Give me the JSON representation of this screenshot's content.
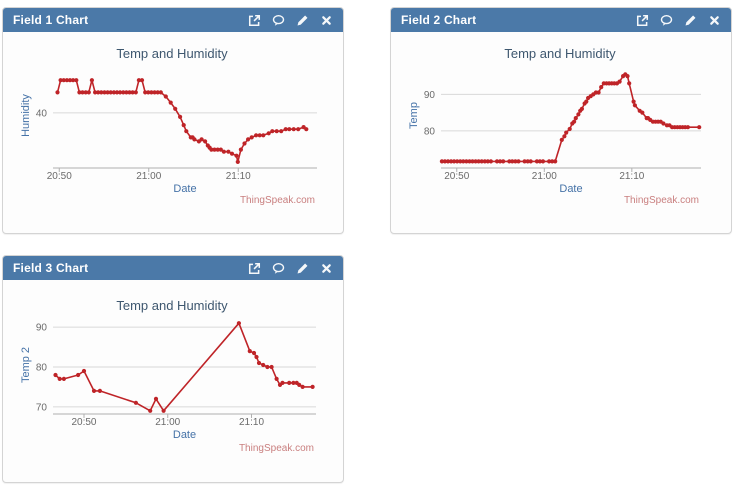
{
  "panels": [
    {
      "title": "Field 1 Chart",
      "icons": [
        "popout-icon",
        "comment-icon",
        "edit-icon",
        "close-icon"
      ]
    },
    {
      "title": "Field 2 Chart",
      "icons": [
        "popout-icon",
        "comment-icon",
        "edit-icon",
        "close-icon"
      ]
    },
    {
      "title": "Field 3 Chart",
      "icons": [
        "popout-icon",
        "comment-icon",
        "edit-icon",
        "close-icon"
      ]
    }
  ],
  "colors": {
    "header_bg": "#4b79a8",
    "header_text": "#ffffff",
    "series_red": "#bf2428",
    "grid": "#d8d8d8",
    "axis_line": "#b0b0b0",
    "chart_title": "#3e576f",
    "axis_title_blue": "#4572a7",
    "tick_label": "#6b6b6b",
    "watermark": "#c97f7f"
  },
  "chart_data": [
    {
      "type": "line",
      "title": "Temp and Humidity",
      "xlabel": "Date",
      "ylabel": "Humidity",
      "watermark": "ThingSpeak.com",
      "x_unit": "minutes since 20:00",
      "xlim": [
        49.3,
        78.8
      ],
      "ylim": [
        26.5,
        52.2
      ],
      "xticks": [
        {
          "v": 50,
          "label": "20:50"
        },
        {
          "v": 60,
          "label": "21:00"
        },
        {
          "v": 70,
          "label": "21:10"
        }
      ],
      "yticks": [
        40
      ],
      "points": [
        [
          49.8,
          45
        ],
        [
          50.15,
          48
        ],
        [
          50.5,
          48
        ],
        [
          50.85,
          48
        ],
        [
          51.2,
          48
        ],
        [
          51.55,
          48
        ],
        [
          51.9,
          48
        ],
        [
          52.25,
          45
        ],
        [
          52.6,
          45
        ],
        [
          52.95,
          45
        ],
        [
          53.3,
          45
        ],
        [
          53.65,
          48
        ],
        [
          54.0,
          45
        ],
        [
          54.35,
          45
        ],
        [
          54.7,
          45
        ],
        [
          55.05,
          45
        ],
        [
          55.4,
          45
        ],
        [
          55.75,
          45
        ],
        [
          56.1,
          45
        ],
        [
          56.45,
          45
        ],
        [
          56.8,
          45
        ],
        [
          57.15,
          45
        ],
        [
          57.5,
          45
        ],
        [
          57.85,
          45
        ],
        [
          58.2,
          45
        ],
        [
          58.55,
          45
        ],
        [
          58.9,
          48
        ],
        [
          59.25,
          48
        ],
        [
          59.6,
          45
        ],
        [
          59.95,
          45
        ],
        [
          60.3,
          45
        ],
        [
          60.65,
          45
        ],
        [
          61.0,
          45
        ],
        [
          61.35,
          45
        ],
        [
          61.9,
          44
        ],
        [
          62.45,
          42.5
        ],
        [
          62.95,
          41
        ],
        [
          63.5,
          39
        ],
        [
          63.9,
          37
        ],
        [
          64.2,
          35.5
        ],
        [
          64.7,
          34
        ],
        [
          64.9,
          34
        ],
        [
          65.1,
          33.5
        ],
        [
          65.6,
          33
        ],
        [
          65.9,
          33.5
        ],
        [
          66.3,
          33
        ],
        [
          66.6,
          32
        ],
        [
          66.8,
          31.5
        ],
        [
          67.0,
          31
        ],
        [
          67.35,
          31
        ],
        [
          67.7,
          31
        ],
        [
          68.05,
          31
        ],
        [
          68.4,
          30.5
        ],
        [
          68.9,
          30.5
        ],
        [
          69.3,
          30
        ],
        [
          69.8,
          29.5
        ],
        [
          69.95,
          28
        ],
        [
          70.3,
          31
        ],
        [
          70.7,
          32.5
        ],
        [
          71.1,
          33.5
        ],
        [
          71.5,
          34
        ],
        [
          72.0,
          34.5
        ],
        [
          72.4,
          34.5
        ],
        [
          72.8,
          34.5
        ],
        [
          73.4,
          35
        ],
        [
          73.8,
          35.5
        ],
        [
          74.3,
          35.5
        ],
        [
          74.8,
          35.5
        ],
        [
          75.3,
          36
        ],
        [
          75.7,
          36
        ],
        [
          76.2,
          36
        ],
        [
          76.7,
          36
        ],
        [
          77.3,
          36.5
        ],
        [
          77.6,
          36
        ]
      ]
    },
    {
      "type": "line",
      "title": "Temp and Humidity",
      "xlabel": "Date",
      "ylabel": "Temp",
      "watermark": "ThingSpeak.com",
      "x_unit": "minutes since 20:00",
      "xlim": [
        48.2,
        77.9
      ],
      "ylim": [
        69.8,
        98.6
      ],
      "xticks": [
        {
          "v": 50,
          "label": "20:50"
        },
        {
          "v": 60,
          "label": "21:00"
        },
        {
          "v": 70,
          "label": "21:10"
        }
      ],
      "yticks": [
        80,
        90
      ],
      "points": [
        [
          48.3,
          71.6
        ],
        [
          48.65,
          71.6
        ],
        [
          49.0,
          71.6
        ],
        [
          49.35,
          71.6
        ],
        [
          49.7,
          71.6
        ],
        [
          50.05,
          71.6
        ],
        [
          50.4,
          71.6
        ],
        [
          50.75,
          71.6
        ],
        [
          51.1,
          71.6
        ],
        [
          51.45,
          71.6
        ],
        [
          51.8,
          71.6
        ],
        [
          52.15,
          71.6
        ],
        [
          52.5,
          71.6
        ],
        [
          52.85,
          71.6
        ],
        [
          53.2,
          71.6
        ],
        [
          53.55,
          71.6
        ],
        [
          53.9,
          71.6
        ],
        [
          54.6,
          71.6
        ],
        [
          54.95,
          71.6
        ],
        [
          55.3,
          71.6
        ],
        [
          56.0,
          71.6
        ],
        [
          56.35,
          71.6
        ],
        [
          56.7,
          71.6
        ],
        [
          57.05,
          71.6
        ],
        [
          57.75,
          71.6
        ],
        [
          58.1,
          71.6
        ],
        [
          58.45,
          71.6
        ],
        [
          59.15,
          71.6
        ],
        [
          59.5,
          71.6
        ],
        [
          59.85,
          71.6
        ],
        [
          60.55,
          71.6
        ],
        [
          60.9,
          71.6
        ],
        [
          61.25,
          71.6
        ],
        [
          62.0,
          77.5
        ],
        [
          62.3,
          78.5
        ],
        [
          62.5,
          79.5
        ],
        [
          62.9,
          80.5
        ],
        [
          63.2,
          82
        ],
        [
          63.4,
          82.5
        ],
        [
          63.6,
          83.5
        ],
        [
          63.9,
          84.5
        ],
        [
          64.1,
          85.5
        ],
        [
          64.3,
          86
        ],
        [
          64.6,
          87.5
        ],
        [
          64.8,
          88
        ],
        [
          65.0,
          89
        ],
        [
          65.3,
          89.5
        ],
        [
          65.6,
          90
        ],
        [
          65.9,
          90.5
        ],
        [
          66.2,
          90.5
        ],
        [
          66.5,
          92
        ],
        [
          66.8,
          93
        ],
        [
          67.1,
          93
        ],
        [
          67.4,
          93
        ],
        [
          67.7,
          93
        ],
        [
          68.0,
          93
        ],
        [
          68.3,
          93
        ],
        [
          68.6,
          93.5
        ],
        [
          69.0,
          95
        ],
        [
          69.25,
          95.5
        ],
        [
          69.5,
          95
        ],
        [
          69.7,
          93
        ],
        [
          70.2,
          88
        ],
        [
          70.35,
          87
        ],
        [
          70.9,
          85.5
        ],
        [
          71.2,
          85
        ],
        [
          71.7,
          83.5
        ],
        [
          71.85,
          83.5
        ],
        [
          72.1,
          83
        ],
        [
          72.4,
          82.5
        ],
        [
          72.7,
          82.5
        ],
        [
          73.0,
          82.5
        ],
        [
          73.3,
          82.5
        ],
        [
          73.6,
          82
        ],
        [
          74.0,
          81.5
        ],
        [
          74.3,
          81.5
        ],
        [
          74.6,
          81
        ],
        [
          74.9,
          81
        ],
        [
          75.2,
          81
        ],
        [
          75.5,
          81
        ],
        [
          75.8,
          81
        ],
        [
          76.1,
          81
        ],
        [
          76.4,
          81
        ],
        [
          77.7,
          81
        ]
      ]
    },
    {
      "type": "line",
      "title": "Temp and Humidity",
      "xlabel": "Date",
      "ylabel": "Temp 2",
      "watermark": "ThingSpeak.com",
      "x_unit": "minutes since 20:00",
      "xlim": [
        46.3,
        77.7
      ],
      "ylim": [
        68.2,
        92.8
      ],
      "xticks": [
        {
          "v": 50,
          "label": "20:50"
        },
        {
          "v": 60,
          "label": "21:00"
        },
        {
          "v": 70,
          "label": "21:10"
        }
      ],
      "yticks": [
        70,
        80,
        90
      ],
      "points": [
        [
          46.6,
          78
        ],
        [
          47.1,
          77
        ],
        [
          47.6,
          77
        ],
        [
          49.3,
          78
        ],
        [
          50.0,
          79
        ],
        [
          51.2,
          74
        ],
        [
          51.9,
          74
        ],
        [
          56.2,
          71
        ],
        [
          57.9,
          69
        ],
        [
          58.6,
          72
        ],
        [
          59.5,
          69
        ],
        [
          68.5,
          91
        ],
        [
          69.8,
          84
        ],
        [
          70.3,
          83.5
        ],
        [
          70.6,
          82.5
        ],
        [
          70.9,
          81
        ],
        [
          71.4,
          80.5
        ],
        [
          71.9,
          80
        ],
        [
          72.4,
          80
        ],
        [
          73.0,
          77
        ],
        [
          73.4,
          75.5
        ],
        [
          73.7,
          76
        ],
        [
          74.5,
          76
        ],
        [
          75.0,
          76
        ],
        [
          75.4,
          76
        ],
        [
          75.7,
          75.5
        ],
        [
          76.1,
          75
        ],
        [
          77.3,
          75
        ]
      ]
    }
  ]
}
